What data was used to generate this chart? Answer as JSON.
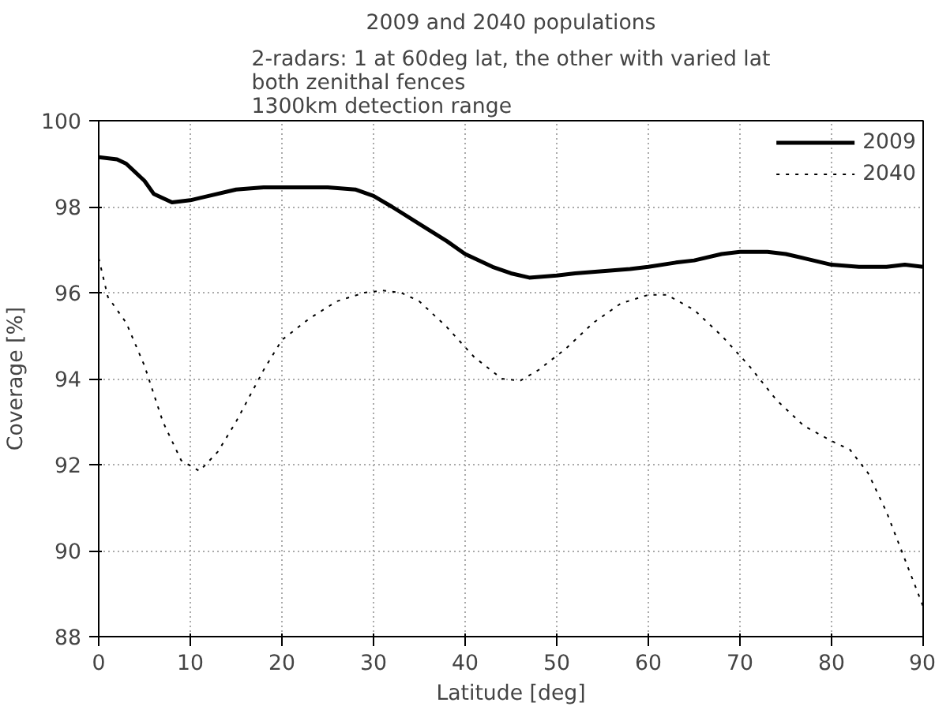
{
  "chart_data": {
    "type": "line",
    "title": "2009 and 2040 populations",
    "subtitle": "2-radars: 1 at 60deg lat, the other with varied lat\nboth zenithal fences\n1300km detection range",
    "xlabel": "Latitude [deg]",
    "ylabel": "Coverage [%]",
    "xlim": [
      0,
      90
    ],
    "ylim": [
      88,
      100
    ],
    "xticks": [
      0,
      10,
      20,
      30,
      40,
      50,
      60,
      70,
      80,
      90
    ],
    "yticks": [
      88,
      90,
      92,
      94,
      96,
      98,
      100
    ],
    "grid": true,
    "legend": "top right",
    "marker": "none",
    "series": [
      {
        "name": "2009",
        "color": "#000000",
        "line_style": "solid",
        "x": [
          0,
          2,
          3,
          5,
          6,
          8,
          10,
          12,
          15,
          18,
          20,
          25,
          28,
          30,
          32,
          35,
          38,
          40,
          43,
          45,
          47,
          50,
          52,
          55,
          58,
          60,
          63,
          65,
          68,
          70,
          73,
          75,
          77,
          80,
          83,
          86,
          88,
          90
        ],
        "values": [
          99.15,
          99.1,
          99.0,
          98.6,
          98.3,
          98.1,
          98.15,
          98.25,
          98.4,
          98.45,
          98.45,
          98.45,
          98.4,
          98.25,
          98.0,
          97.6,
          97.2,
          96.9,
          96.6,
          96.45,
          96.35,
          96.4,
          96.45,
          96.5,
          96.55,
          96.6,
          96.7,
          96.75,
          96.9,
          96.95,
          96.95,
          96.9,
          96.8,
          96.65,
          96.6,
          96.6,
          96.65,
          96.6
        ]
      },
      {
        "name": "2040",
        "color": "#000000",
        "line_style": "dotted",
        "x": [
          0,
          1,
          3,
          5,
          7,
          9,
          11,
          13,
          15,
          18,
          20,
          23,
          26,
          29,
          31,
          33,
          35,
          38,
          41,
          44,
          46,
          48,
          51,
          54,
          57,
          60,
          62,
          65,
          68,
          71,
          74,
          77,
          80,
          82,
          84,
          86,
          88,
          90
        ],
        "values": [
          96.8,
          95.9,
          95.3,
          94.3,
          93.0,
          92.1,
          91.85,
          92.3,
          93.0,
          94.2,
          94.9,
          95.4,
          95.8,
          96.0,
          96.05,
          96.0,
          95.8,
          95.2,
          94.5,
          94.0,
          93.95,
          94.2,
          94.7,
          95.3,
          95.75,
          95.95,
          95.95,
          95.6,
          95.0,
          94.3,
          93.5,
          92.9,
          92.55,
          92.35,
          91.8,
          90.9,
          89.8,
          88.7
        ]
      }
    ]
  }
}
